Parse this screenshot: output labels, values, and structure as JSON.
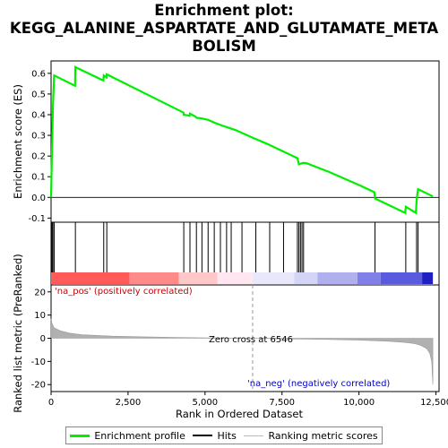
{
  "title_lines": [
    "Enrichment plot:",
    "KEGG_ALANINE_ASPARTATE_AND_GLUTAMATE_META",
    "BOLISM"
  ],
  "chart_data": {
    "type": "line",
    "title": "Enrichment plot: KEGG_ALANINE_ASPARTATE_AND_GLUTAMATE_METABOLISM",
    "es_panel": {
      "ylabel": "Enrichment score (ES)",
      "ylim": [
        -0.12,
        0.66
      ],
      "yticks": [
        -0.1,
        0.0,
        0.1,
        0.2,
        0.3,
        0.4,
        0.5,
        0.6
      ],
      "ytick_labels": [
        "-0.1",
        "0.0",
        "0.1",
        "0.2",
        "0.3",
        "0.4",
        "0.5",
        "0.6"
      ],
      "series": [
        {
          "name": "Enrichment profile",
          "color": "#00ee00",
          "x": [
            0,
            30,
            60,
            100,
            780,
            790,
            1700,
            1710,
            1800,
            1810,
            4300,
            4310,
            4500,
            4510,
            4700,
            4720,
            4900,
            5100,
            5300,
            5500,
            5700,
            6000,
            6300,
            6600,
            7000,
            7500,
            8000,
            8050,
            8100,
            8150,
            8200,
            8300,
            9000,
            10000,
            10500,
            10520,
            11500,
            11520,
            11850,
            11870,
            11900,
            11920,
            12400
          ],
          "y": [
            0.0,
            0.22,
            0.44,
            0.59,
            0.54,
            0.63,
            0.565,
            0.59,
            0.58,
            0.595,
            0.41,
            0.4,
            0.395,
            0.405,
            0.39,
            0.385,
            0.382,
            0.375,
            0.362,
            0.35,
            0.34,
            0.325,
            0.305,
            0.285,
            0.26,
            0.225,
            0.19,
            0.16,
            0.163,
            0.165,
            0.167,
            0.165,
            0.125,
            0.06,
            0.025,
            -0.005,
            -0.075,
            -0.045,
            -0.075,
            -0.02,
            0.02,
            0.04,
            0.005
          ]
        }
      ]
    },
    "hits": [
      30,
      60,
      100,
      790,
      1710,
      1810,
      4310,
      4510,
      4720,
      4900,
      5100,
      5300,
      5500,
      5700,
      5850,
      6200,
      6650,
      7100,
      7550,
      8000,
      8050,
      8100,
      8150,
      8200,
      10520,
      11520,
      11870,
      11920
    ],
    "metric_panel": {
      "ylabel": "Ranked list metric (PreRanked)",
      "xlabel": "Rank in Ordered Dataset",
      "ylim": [
        -23,
        23
      ],
      "yticks": [
        -20,
        -10,
        0,
        10,
        20
      ],
      "ytick_labels": [
        "-20",
        "-10",
        "0",
        "10",
        "20"
      ],
      "xlim": [
        0,
        12600
      ],
      "xticks": [
        0,
        2500,
        5000,
        7500,
        10000,
        12500
      ],
      "xtick_labels": [
        "0",
        "2,500",
        "5,000",
        "7,500",
        "10,000",
        "12,500"
      ],
      "metric_curve": {
        "x": [
          0,
          30,
          100,
          300,
          600,
          1000,
          2000,
          3000,
          4000,
          5000,
          6000,
          6546,
          7000,
          8000,
          9000,
          10000,
          11000,
          11500,
          11800,
          12000,
          12200,
          12300,
          12360,
          12400
        ],
        "y": [
          8.5,
          6.5,
          4.5,
          3.2,
          2.2,
          1.5,
          0.9,
          0.6,
          0.35,
          0.2,
          0.08,
          0.0,
          -0.1,
          -0.3,
          -0.5,
          -0.8,
          -1.3,
          -1.8,
          -2.3,
          -3.0,
          -4.5,
          -6.5,
          -10,
          -20
        ]
      },
      "zero_cross_rank": 6546
    },
    "rank_bar_color_stops": [
      {
        "from": 0,
        "to": 2550,
        "color": "#ff5a5a"
      },
      {
        "from": 2550,
        "to": 4150,
        "color": "#ff8a8a"
      },
      {
        "from": 4150,
        "to": 5400,
        "color": "#ffc8c8"
      },
      {
        "from": 5400,
        "to": 6550,
        "color": "#ffe6f0"
      },
      {
        "from": 6550,
        "to": 7900,
        "color": "#e8e8fa"
      },
      {
        "from": 7900,
        "to": 8650,
        "color": "#d4d4f6"
      },
      {
        "from": 8650,
        "to": 9950,
        "color": "#b0b0ee"
      },
      {
        "from": 9950,
        "to": 10700,
        "color": "#8080e8"
      },
      {
        "from": 10700,
        "to": 12050,
        "color": "#5a5ade"
      },
      {
        "from": 12050,
        "to": 12400,
        "color": "#2020c0"
      }
    ]
  },
  "annotations": {
    "na_pos": "'na_pos' (positively correlated)",
    "na_neg": "'na_neg' (negatively correlated)",
    "zero_cross": "Zero cross at 6546"
  },
  "legend": {
    "items": [
      {
        "label": "Enrichment profile",
        "color": "#00ee00"
      },
      {
        "label": "Hits",
        "color": "#000000"
      },
      {
        "label": "Ranking metric scores",
        "color": "#bbbbbb"
      }
    ]
  }
}
